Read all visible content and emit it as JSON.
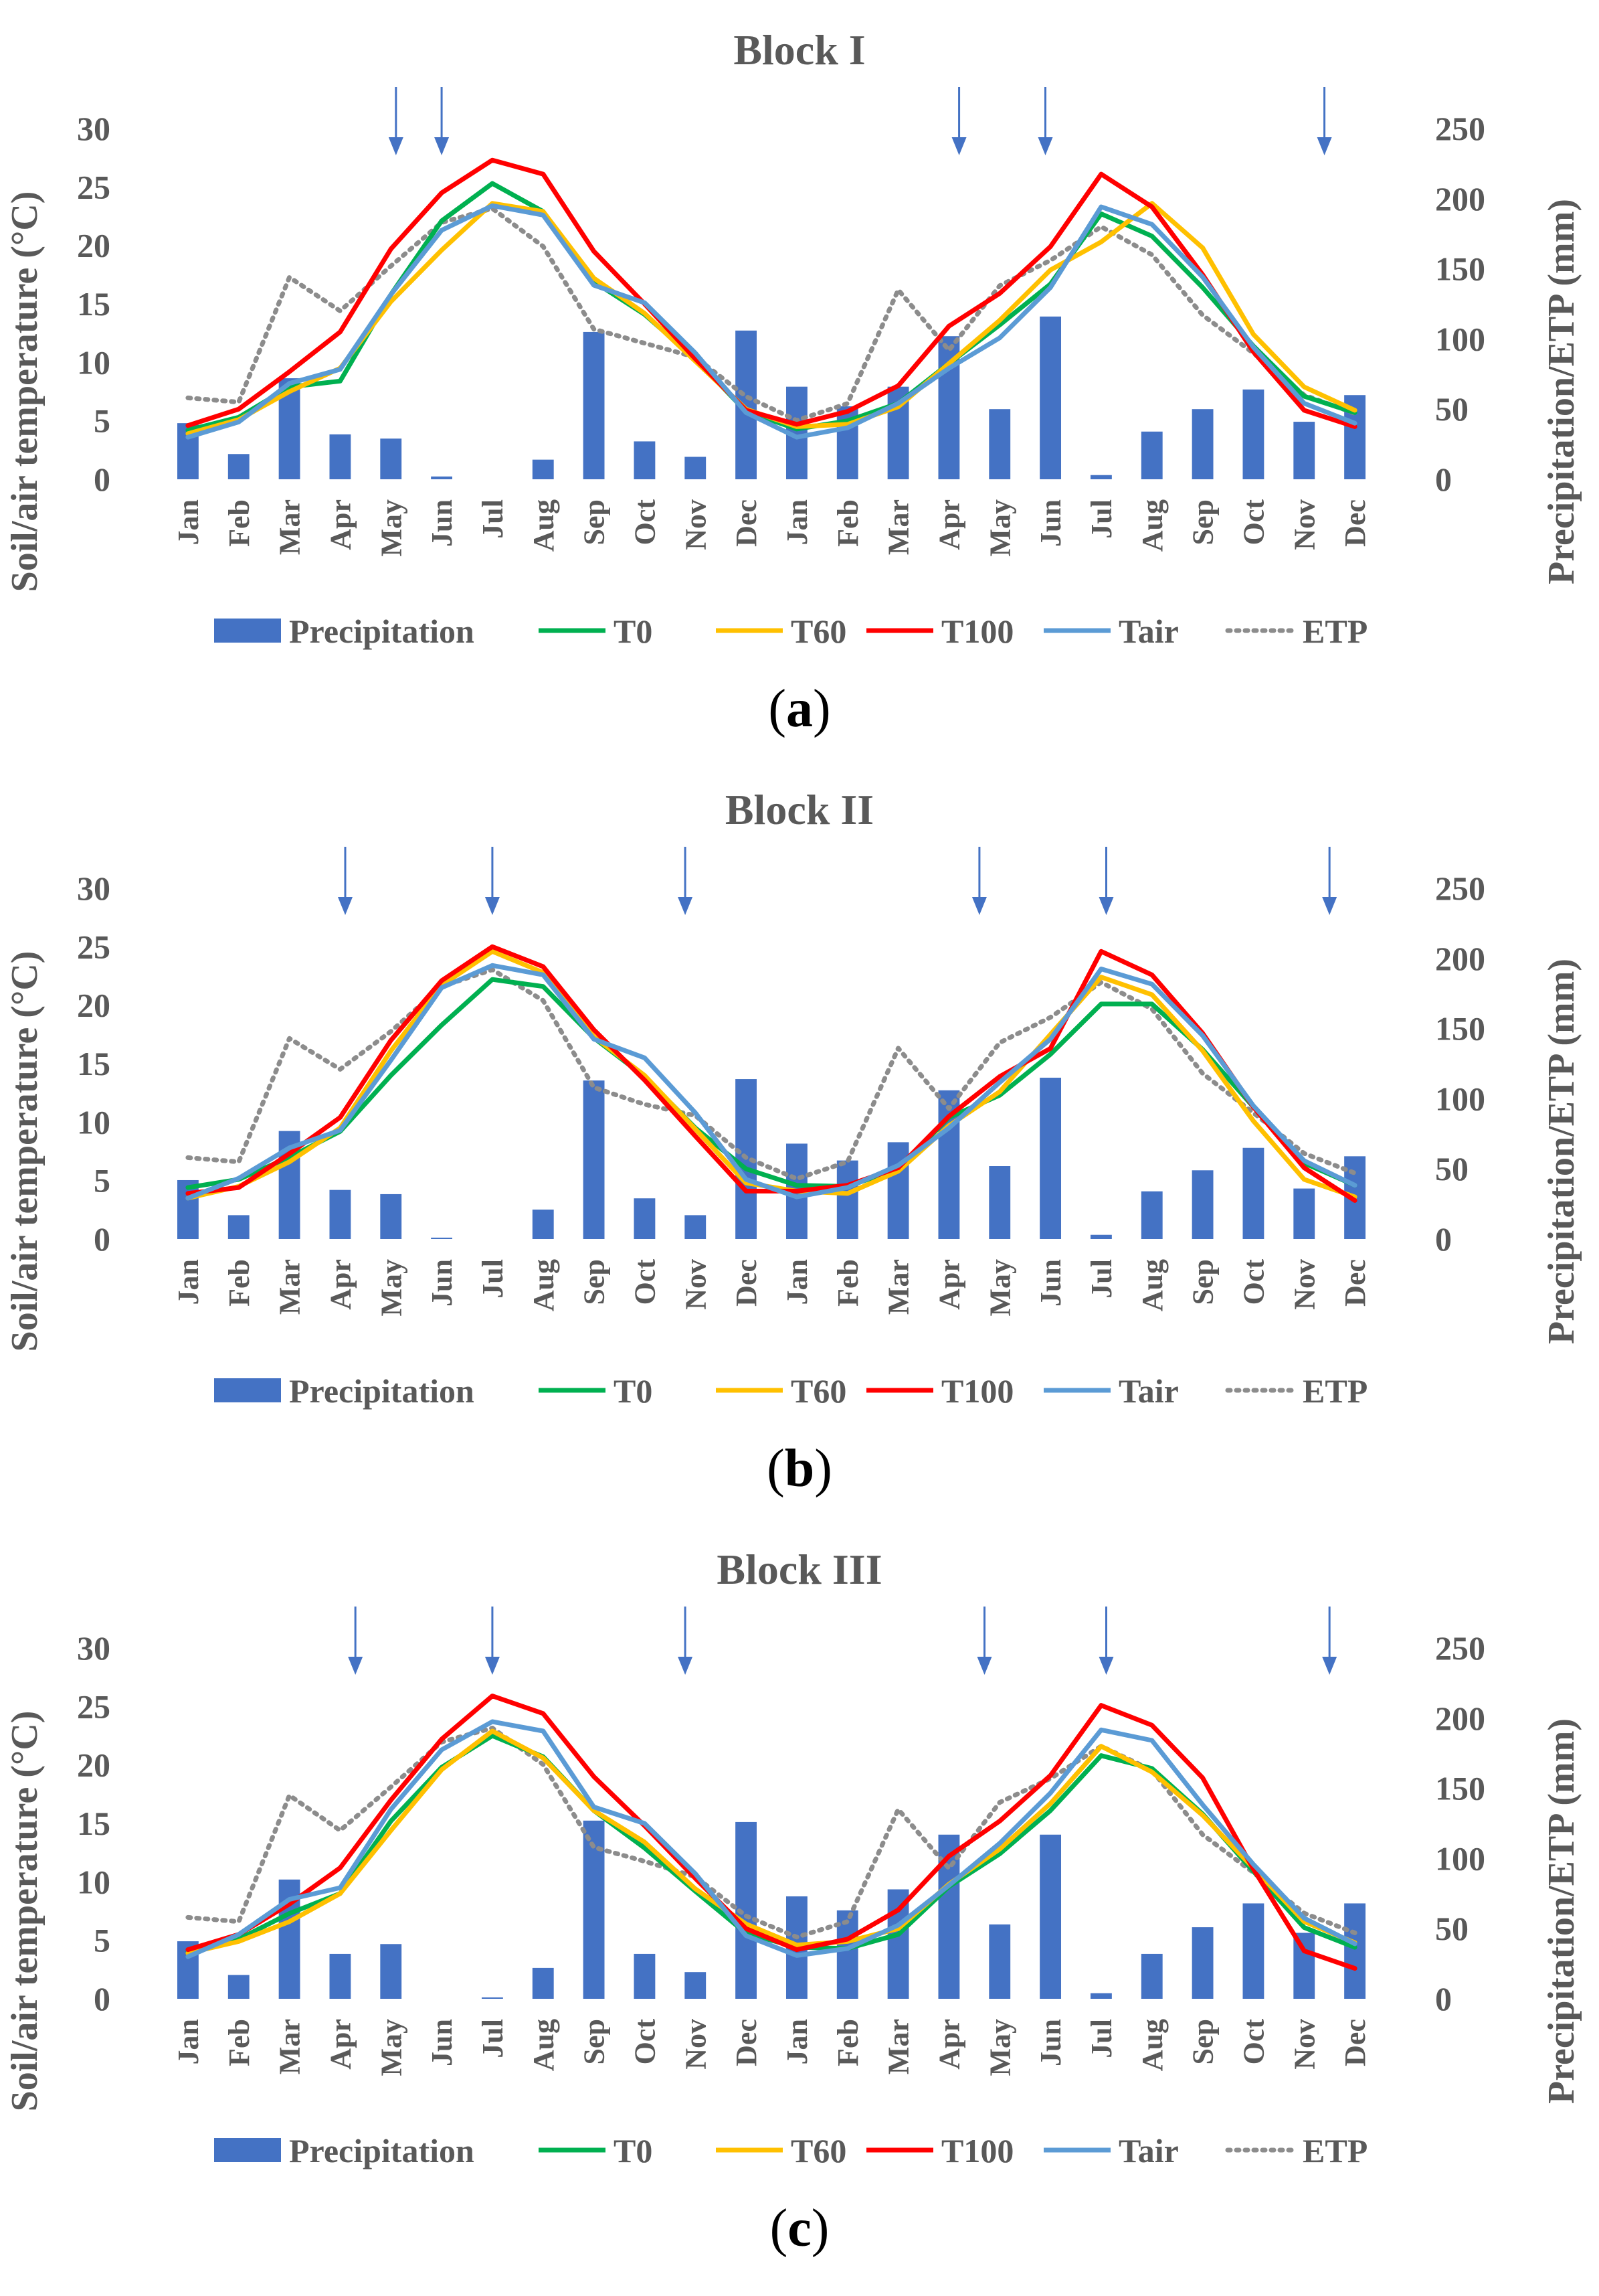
{
  "colors": {
    "precipitation": "#4472C4",
    "T0": "#00B050",
    "T60": "#FFC000",
    "T100": "#FF0000",
    "Tair": "#5B9BD5",
    "ETP": "#8C8C8C",
    "text": "#595959",
    "arrow": "#4472C4"
  },
  "chart_data": [
    {
      "type": "bar+line",
      "title": "Block I",
      "caption": "a",
      "categories": [
        "Jan",
        "Feb",
        "Mar",
        "Apr",
        "May",
        "Jun",
        "Jul",
        "Aug",
        "Sep",
        "Oct",
        "Nov",
        "Dec",
        "Jan",
        "Feb",
        "Mar",
        "Apr",
        "May",
        "Jun",
        "Jul",
        "Aug",
        "Sep",
        "Oct",
        "Nov",
        "Dec"
      ],
      "ylabel_left": "Soil/air temperature (°C)",
      "ylabel_right": "Precipitation/ETP (mm)",
      "ylim_left": [
        0,
        30
      ],
      "ylim_right": [
        0,
        250
      ],
      "yticks_left": [
        "0",
        "5",
        "10",
        "15",
        "20",
        "25",
        "30"
      ],
      "yticks_right": [
        "0",
        "50",
        "100",
        "150",
        "200",
        "250"
      ],
      "legend": [
        "Precipitation",
        "T0",
        "T60",
        "T100",
        "Tair",
        "ETP"
      ],
      "precipitation": [
        40,
        18,
        72,
        32,
        29,
        2,
        0,
        14,
        105,
        27,
        16,
        106,
        66,
        52,
        66,
        102,
        50,
        116,
        3,
        34,
        50,
        64,
        41,
        60
      ],
      "T0": [
        4.2,
        5.3,
        7.9,
        8.4,
        15.8,
        22.1,
        25.3,
        22.9,
        16.9,
        14.1,
        10.3,
        5.8,
        4.3,
        5.0,
        6.5,
        9.9,
        13.2,
        16.7,
        22.7,
        20.8,
        16.4,
        11.4,
        7.1,
        5.7
      ],
      "T60": [
        3.9,
        5.1,
        7.5,
        9.5,
        15.2,
        19.6,
        23.6,
        22.9,
        17.2,
        14.2,
        10.1,
        6.0,
        4.5,
        4.7,
        6.2,
        9.9,
        13.6,
        17.9,
        20.3,
        23.6,
        19.8,
        12.4,
        7.9,
        5.9
      ],
      "T100": [
        4.6,
        6.0,
        9.2,
        12.6,
        19.7,
        24.5,
        27.3,
        26.1,
        19.5,
        15.0,
        10.3,
        5.9,
        4.7,
        5.8,
        8.0,
        13.1,
        15.9,
        19.9,
        26.1,
        23.3,
        17.5,
        10.9,
        5.9,
        4.5
      ],
      "Tair": [
        3.6,
        4.9,
        8.2,
        9.4,
        15.8,
        21.3,
        23.4,
        22.6,
        16.6,
        15.1,
        10.8,
        5.7,
        3.6,
        4.4,
        6.5,
        9.5,
        12.1,
        16.4,
        23.3,
        21.8,
        17.3,
        11.3,
        6.5,
        4.8
      ],
      "ETP": [
        58,
        55,
        144,
        120,
        152,
        183,
        193,
        166,
        107,
        97,
        87,
        59,
        42,
        54,
        135,
        92,
        138,
        156,
        180,
        160,
        117,
        90,
        60,
        47
      ],
      "arrows_at_category_index": [
        4.6,
        5.5,
        15.7,
        17.4,
        22.9
      ]
    },
    {
      "type": "bar+line",
      "title": "Block II",
      "caption": "b",
      "categories": [
        "Jan",
        "Feb",
        "Mar",
        "Apr",
        "May",
        "Jun",
        "Jul",
        "Aug",
        "Sep",
        "Oct",
        "Nov",
        "Dec",
        "Jan",
        "Feb",
        "Mar",
        "Apr",
        "May",
        "Jun",
        "Jul",
        "Aug",
        "Sep",
        "Oct",
        "Nov",
        "Dec"
      ],
      "ylabel_left": "Soil/air temperature (°C)",
      "ylabel_right": "Precipitation/ETP (mm)",
      "ylim_left": [
        0,
        30
      ],
      "ylim_right": [
        0,
        250
      ],
      "yticks_left": [
        "0",
        "5",
        "10",
        "15",
        "20",
        "25",
        "30"
      ],
      "yticks_right": [
        "0",
        "50",
        "100",
        "150",
        "200",
        "250"
      ],
      "legend": [
        "Precipitation",
        "T0",
        "T60",
        "T100",
        "Tair",
        "ETP"
      ],
      "precipitation": [
        42,
        17,
        77,
        35,
        32,
        1,
        0,
        21,
        113,
        29,
        17,
        114,
        68,
        56,
        69,
        106,
        52,
        115,
        3,
        34,
        49,
        65,
        36,
        59
      ],
      "T0": [
        4.4,
        5.1,
        7.0,
        9.2,
        14.0,
        18.3,
        22.2,
        21.6,
        17.2,
        13.9,
        9.5,
        6.0,
        4.6,
        4.5,
        6.0,
        10.4,
        12.3,
        15.8,
        20.1,
        20.1,
        16.2,
        11.3,
        6.5,
        4.6
      ],
      "T60": [
        3.5,
        4.5,
        6.6,
        9.5,
        16.1,
        21.7,
        24.6,
        22.8,
        17.3,
        14.0,
        9.4,
        4.8,
        4.1,
        3.9,
        5.8,
        9.7,
        12.6,
        17.5,
        22.4,
        20.9,
        16.1,
        10.1,
        5.1,
        3.6
      ],
      "T100": [
        3.9,
        4.4,
        7.3,
        10.4,
        17.0,
        22.1,
        25.0,
        23.3,
        17.9,
        13.6,
        8.8,
        4.1,
        4.1,
        4.6,
        6.1,
        10.5,
        13.9,
        16.3,
        24.6,
        22.6,
        17.6,
        11.3,
        6.1,
        3.3
      ],
      "Tair": [
        3.5,
        5.2,
        7.8,
        9.3,
        15.3,
        21.5,
        23.4,
        22.6,
        17.1,
        15.5,
        10.8,
        5.1,
        3.6,
        4.4,
        6.3,
        9.5,
        13.4,
        17.1,
        23.1,
        21.8,
        17.4,
        11.4,
        6.7,
        4.6
      ],
      "ETP": [
        58,
        55,
        143,
        121,
        148,
        180,
        192,
        170,
        108,
        96,
        88,
        58,
        43,
        55,
        136,
        93,
        140,
        158,
        183,
        164,
        118,
        90,
        61,
        47
      ],
      "arrows_at_category_index": [
        3.6,
        6.5,
        10.3,
        16.1,
        18.6,
        23.0
      ]
    },
    {
      "type": "bar+line",
      "title": "Block III",
      "caption": "c",
      "categories": [
        "Jan",
        "Feb",
        "Mar",
        "Apr",
        "May",
        "Jun",
        "Jul",
        "Aug",
        "Sep",
        "Oct",
        "Nov",
        "Dec",
        "Jan",
        "Feb",
        "Mar",
        "Apr",
        "May",
        "Jun",
        "Jul",
        "Aug",
        "Sep",
        "Oct",
        "Nov",
        "Dec"
      ],
      "ylabel_left": "Soil/air temperature (°C)",
      "ylabel_right": "Precipitation/ETP (mm)",
      "ylim_left": [
        0,
        30
      ],
      "ylim_right": [
        0,
        250
      ],
      "yticks_left": [
        "0",
        "5",
        "10",
        "15",
        "20",
        "25",
        "30"
      ],
      "yticks_right": [
        "0",
        "50",
        "100",
        "150",
        "200",
        "250"
      ],
      "legend": [
        "Precipitation",
        "T0",
        "T60",
        "T100",
        "Tair",
        "ETP"
      ],
      "precipitation": [
        41,
        17,
        85,
        32,
        39,
        0,
        1,
        22,
        127,
        32,
        19,
        126,
        73,
        63,
        78,
        117,
        53,
        117,
        4,
        32,
        51,
        68,
        47,
        68
      ],
      "T0": [
        4.0,
        5.1,
        7.3,
        9.0,
        15.2,
        19.8,
        22.5,
        20.7,
        16.1,
        12.9,
        9.2,
        5.6,
        4.4,
        4.3,
        5.5,
        9.6,
        12.4,
        16.1,
        20.8,
        19.7,
        15.8,
        10.9,
        6.1,
        4.4
      ],
      "T60": [
        3.9,
        4.9,
        6.6,
        9.0,
        14.4,
        19.6,
        22.9,
        20.6,
        16.1,
        13.4,
        9.4,
        6.4,
        4.6,
        4.9,
        6.0,
        9.8,
        12.8,
        16.7,
        21.6,
        19.4,
        15.7,
        11.2,
        6.6,
        4.8
      ],
      "T100": [
        4.2,
        5.5,
        8.1,
        11.2,
        17.0,
        22.2,
        25.9,
        24.4,
        19.0,
        14.8,
        10.3,
        6.0,
        4.2,
        5.1,
        7.6,
        12.2,
        15.2,
        19.1,
        25.1,
        23.4,
        18.9,
        11.1,
        4.1,
        2.6
      ],
      "Tair": [
        3.6,
        5.5,
        8.5,
        9.5,
        16.2,
        21.3,
        23.7,
        22.9,
        16.4,
        15.0,
        10.7,
        5.4,
        3.7,
        4.3,
        6.3,
        9.7,
        13.3,
        17.6,
        23.0,
        22.1,
        16.6,
        11.5,
        6.9,
        4.7
      ],
      "ETP": [
        58,
        55,
        145,
        120,
        151,
        183,
        193,
        167,
        108,
        98,
        87,
        59,
        44,
        55,
        135,
        93,
        140,
        157,
        180,
        163,
        117,
        90,
        61,
        47
      ],
      "arrows_at_category_index": [
        3.8,
        6.5,
        10.3,
        16.2,
        18.6,
        23.0
      ]
    }
  ]
}
